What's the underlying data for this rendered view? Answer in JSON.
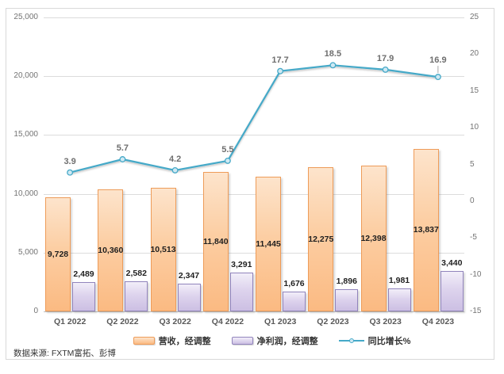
{
  "chart_data": {
    "type": "combo-bar-line",
    "title": "",
    "categories": [
      "Q1 2022",
      "Q2 2022",
      "Q3 2022",
      "Q4 2022",
      "Q1 2023",
      "Q2 2023",
      "Q3 2023",
      "Q4 2023"
    ],
    "series": [
      {
        "name": "营收，经调整",
        "type": "bar",
        "axis": "left",
        "values": [
          9728,
          10360,
          10513,
          11840,
          11445,
          12275,
          12398,
          13837
        ],
        "labels": [
          "9,728",
          "10,360",
          "10,513",
          "11,840",
          "11,445",
          "12,275",
          "12,398",
          "13,837"
        ],
        "label_position": "inside-center"
      },
      {
        "name": "净利润，经调整",
        "type": "bar",
        "axis": "left",
        "values": [
          2489,
          2582,
          2347,
          3291,
          1676,
          1896,
          1981,
          3440
        ],
        "labels": [
          "2,489",
          "2,582",
          "2,347",
          "3,291",
          "1,676",
          "1,896",
          "1,981",
          "3,440"
        ],
        "label_position": "outside-top"
      },
      {
        "name": "同比增长%",
        "type": "line",
        "axis": "right",
        "values": [
          3.9,
          5.7,
          4.2,
          5.5,
          17.7,
          18.5,
          17.9,
          16.9
        ],
        "labels": [
          "3.9",
          "5.7",
          "4.2",
          "5.5",
          "17.7",
          "18.5",
          "17.9",
          "16.9"
        ]
      }
    ],
    "left_axis": {
      "min": 0,
      "max": 25000,
      "step": 5000,
      "tick_labels": [
        "0",
        "5,000",
        "10,000",
        "15,000",
        "20,000",
        "25,000"
      ]
    },
    "right_axis": {
      "min": -15,
      "max": 25,
      "step": 5,
      "tick_labels": [
        "-15",
        "-10",
        "-5",
        "0",
        "5",
        "10",
        "15",
        "20",
        "25"
      ]
    },
    "gridlines": "horizontal",
    "legend_position": "bottom",
    "source_note": "数据来源: FXTM富拓、彭博",
    "colors": {
      "bar1_fill_light": "#FDE4CC",
      "bar1_fill_dark": "#FBBA82",
      "bar1_border": "#EE9C59",
      "bar2_fill_light": "#F2EEF9",
      "bar2_fill_dark": "#CCBFE3",
      "bar2_border": "#9184BC",
      "line": "#45A9C8",
      "marker_fill": "#CFE9F3",
      "gridline": "#DCDCDC",
      "axis_text": "#737373",
      "category_text": "#595959",
      "bar_label_text": "#1F1F1F",
      "line_label_text": "#6E6E6E",
      "legend_text": "#333333",
      "frame_border": "#D9D9D9"
    }
  }
}
